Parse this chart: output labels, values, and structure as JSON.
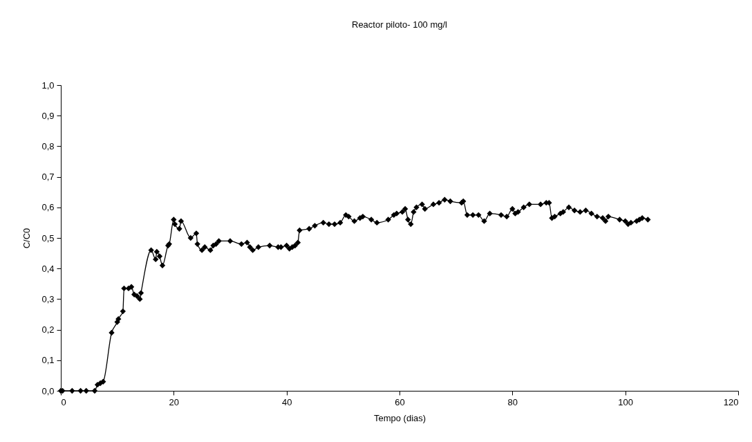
{
  "chart_data": {
    "type": "line",
    "title": "Reactor piloto- 100 mg/l",
    "xlabel": "Tempo (dias)",
    "ylabel": "C/C0",
    "x": [
      0,
      0.3,
      2,
      3.5,
      4.5,
      6,
      6.5,
      7,
      7.5,
      9,
      10,
      10.2,
      11,
      11.2,
      12,
      12.5,
      13,
      13.5,
      14,
      14.2,
      16,
      16.8,
      17,
      17.5,
      18,
      19,
      19.2,
      20,
      20.2,
      21,
      21.3,
      23,
      24,
      24.2,
      25,
      25.5,
      26.5,
      27,
      27.5,
      28,
      30,
      32,
      33,
      33.5,
      34,
      35,
      37,
      38.5,
      39,
      40,
      40.5,
      41,
      41.5,
      42,
      42.3,
      44,
      45,
      46.5,
      47.5,
      48.5,
      49.5,
      50.5,
      51,
      52,
      53,
      53.5,
      55,
      56,
      58,
      59,
      59.5,
      60.5,
      61,
      61.5,
      62,
      62.5,
      63,
      64,
      64.5,
      66,
      67,
      68,
      69,
      71,
      71.3,
      72,
      73,
      74,
      75,
      76,
      78,
      79,
      80,
      80.5,
      81,
      82,
      83,
      85,
      86,
      86.5,
      87,
      87.5,
      88.5,
      89,
      90,
      91,
      92,
      93,
      94,
      95,
      96,
      96.5,
      97,
      99,
      100,
      100.5,
      101,
      102,
      102.5,
      103,
      104
    ],
    "series": [
      {
        "color": "#000000",
        "values": [
          0,
          0,
          0,
          0,
          0,
          0,
          0.02,
          0.025,
          0.03,
          0.19,
          0.225,
          0.235,
          0.26,
          0.335,
          0.335,
          0.34,
          0.315,
          0.31,
          0.3,
          0.32,
          0.46,
          0.43,
          0.455,
          0.44,
          0.41,
          0.475,
          0.48,
          0.56,
          0.545,
          0.53,
          0.555,
          0.5,
          0.515,
          0.48,
          0.46,
          0.47,
          0.46,
          0.475,
          0.48,
          0.49,
          0.49,
          0.48,
          0.485,
          0.47,
          0.46,
          0.47,
          0.475,
          0.47,
          0.47,
          0.475,
          0.465,
          0.47,
          0.475,
          0.485,
          0.525,
          0.53,
          0.54,
          0.55,
          0.545,
          0.545,
          0.55,
          0.575,
          0.57,
          0.555,
          0.565,
          0.57,
          0.56,
          0.55,
          0.56,
          0.575,
          0.58,
          0.585,
          0.595,
          0.56,
          0.545,
          0.585,
          0.6,
          0.61,
          0.595,
          0.61,
          0.615,
          0.625,
          0.62,
          0.615,
          0.62,
          0.575,
          0.575,
          0.575,
          0.555,
          0.58,
          0.575,
          0.57,
          0.595,
          0.58,
          0.585,
          0.6,
          0.61,
          0.61,
          0.615,
          0.615,
          0.565,
          0.57,
          0.58,
          0.585,
          0.6,
          0.59,
          0.585,
          0.59,
          0.58,
          0.57,
          0.565,
          0.555,
          0.57,
          0.56,
          0.555,
          0.545,
          0.55,
          0.555,
          0.56,
          0.565,
          0.56
        ]
      }
    ],
    "xlim": [
      0,
      120
    ],
    "xticks": [
      0,
      20,
      40,
      60,
      80,
      100,
      120
    ],
    "ylim": [
      0,
      1
    ],
    "yticks": [
      {
        "value": 0,
        "label": "0,0"
      },
      {
        "value": 0.1,
        "label": "0,1"
      },
      {
        "value": 0.2,
        "label": "0,2"
      },
      {
        "value": 0.3,
        "label": "0,3"
      },
      {
        "value": 0.4,
        "label": "0,4"
      },
      {
        "value": 0.5,
        "label": "0,5"
      },
      {
        "value": 0.6,
        "label": "0,6"
      },
      {
        "value": 0.7,
        "label": "0,7"
      },
      {
        "value": 0.8,
        "label": "0,8"
      },
      {
        "value": 0.9,
        "label": "0,9"
      },
      {
        "value": 1,
        "label": "1,0"
      }
    ],
    "grid": false,
    "marker": "diamond",
    "line_style": "solid"
  }
}
